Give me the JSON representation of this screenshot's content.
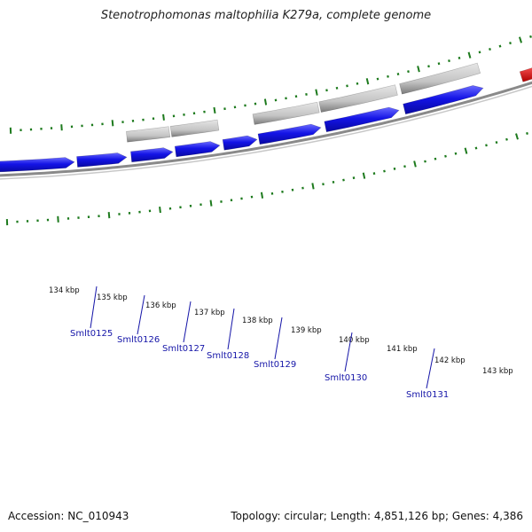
{
  "title": "Stenotrophomonas maltophilia K279a, complete genome",
  "footer": {
    "accession": "Accession: NC_010943",
    "summary": "Topology: circular; Length: 4,851,126 bp; Genes: 4,386"
  },
  "colors": {
    "forward_gene": "#1414e6",
    "rna_gene": "#e60a0a",
    "feature": "#c4c4c4",
    "backbone": "#8a8a8a",
    "tick": "#1d7a1d",
    "gene_label": "#1515a8"
  },
  "kbp_labels": [
    "134 kbp",
    "135 kbp",
    "136 kbp",
    "137 kbp",
    "138 kbp",
    "139 kbp",
    "140 kbp",
    "141 kbp",
    "142 kbp",
    "143 kbp"
  ],
  "gene_labels": [
    "Smlt0125",
    "Smlt0126",
    "Smlt0127",
    "Smlt0128",
    "Smlt0129",
    "Smlt0130",
    "Smlt0131"
  ]
}
